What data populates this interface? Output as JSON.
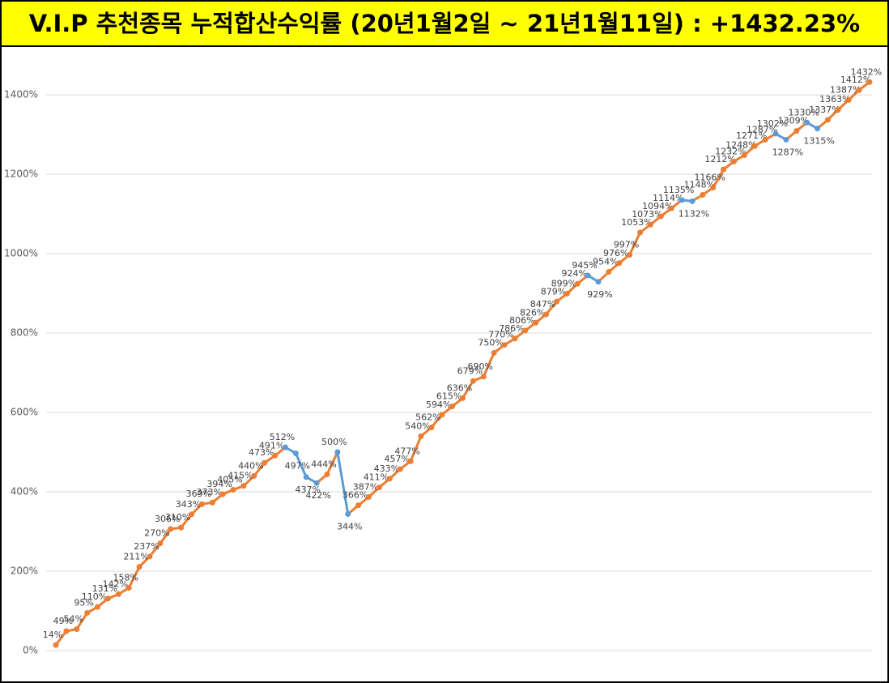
{
  "chart_data": {
    "type": "line",
    "title": "V.I.P 추천종목 누적합산수익률 (20년1월2일 ~ 21년1월11일) : +1432.23%",
    "categories": [
      null,
      null,
      null,
      null,
      null,
      null,
      null,
      null,
      null,
      null,
      null,
      null,
      null,
      null,
      null,
      null,
      null,
      null,
      null,
      null,
      null,
      null,
      null,
      null,
      null,
      null,
      null,
      null,
      null,
      null,
      null,
      null,
      null,
      null,
      null,
      null,
      null,
      null,
      null,
      null,
      null,
      null,
      null,
      null,
      null,
      null,
      null,
      null,
      null,
      null,
      null,
      null,
      null,
      null,
      null,
      null,
      null,
      null,
      null,
      null,
      null,
      null,
      null,
      null,
      null,
      null,
      null,
      null,
      null,
      null,
      null,
      null,
      null,
      null,
      null,
      null,
      null,
      null,
      null
    ],
    "series": [
      {
        "name": "누적합산수익률",
        "color": "#ed7d31",
        "decrease_color": "#5b9bd5",
        "values": [
          14,
          49,
          54,
          95,
          110,
          131,
          142,
          158,
          211,
          237,
          270,
          306,
          310,
          343,
          369,
          373,
          394,
          405,
          415,
          440,
          473,
          491,
          512,
          497,
          437,
          422,
          444,
          500,
          344,
          366,
          387,
          411,
          433,
          457,
          477,
          540,
          562,
          594,
          615,
          636,
          679,
          690,
          750,
          770,
          786,
          806,
          826,
          847,
          879,
          899,
          924,
          945,
          929,
          954,
          976,
          997,
          1053,
          1073,
          1094,
          1114,
          1135,
          1132,
          1148,
          1166,
          1212,
          1232,
          1248,
          1271,
          1287,
          1302,
          1287,
          1309,
          1330,
          1315,
          1337,
          1363,
          1387,
          1412,
          1432
        ],
        "value_labels": [
          "14%",
          "49%",
          "54%",
          "95%",
          "110%",
          "131%",
          "142%",
          "158%",
          "211%",
          "237%",
          "270%",
          "306%",
          "310%",
          "343%",
          "369%",
          "373%",
          "394%",
          "405%",
          "415%",
          "440%",
          "473%",
          "491%",
          "512%",
          "497%",
          "437%",
          "422%",
          "444%",
          "500%",
          "344%",
          "366%",
          "387%",
          "411%",
          "433%",
          "457%",
          "477%",
          "540%",
          "562%",
          "594%",
          "615%",
          "636%",
          "679%",
          "690%",
          "750%",
          "770%",
          "786%",
          "806%",
          "826%",
          "847%",
          "879%",
          "899%",
          "924%",
          "945%",
          "929%",
          "954%",
          "976%",
          "997%",
          "1053%",
          "1073%",
          "1094%",
          "1114%",
          "1135%",
          "1132%",
          "1148%",
          "1166%",
          "1212%",
          "1232%",
          "1248%",
          "1271%",
          "1287%",
          "1302%",
          "1287%",
          "1309%",
          "1330%",
          "1315%",
          "1337%",
          "1363%",
          "1387%",
          "1412%",
          "1432%"
        ]
      }
    ],
    "ylim": [
      0,
      1500
    ],
    "yticks": [
      {
        "value": 0,
        "label": "0%"
      },
      {
        "value": 200,
        "label": "200%"
      },
      {
        "value": 400,
        "label": "400%"
      },
      {
        "value": 600,
        "label": "600%"
      },
      {
        "value": 800,
        "label": "800%"
      },
      {
        "value": 1000,
        "label": "1000%"
      },
      {
        "value": 1200,
        "label": "1200%"
      },
      {
        "value": 1400,
        "label": "1400%"
      }
    ],
    "grid": true
  }
}
